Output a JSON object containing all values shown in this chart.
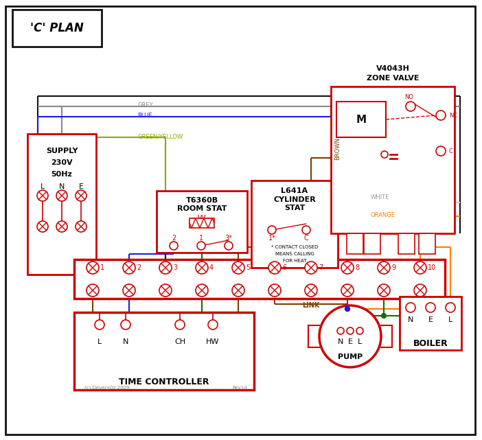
{
  "title": "'C' PLAN",
  "red": "#cc0000",
  "blue": "#1a1aee",
  "green": "#007700",
  "brown": "#7B3F00",
  "grey": "#888888",
  "orange": "#FF8000",
  "white_wire": "#aaaaaa",
  "black": "#111111",
  "green_yellow": "#88aa00",
  "supply_label": [
    "SUPPLY",
    "230V",
    "50Hz"
  ],
  "lne_labels": [
    "L",
    "N",
    "E"
  ],
  "terminal_labels": [
    "1",
    "2",
    "3",
    "4",
    "5",
    "6",
    "7",
    "8",
    "9",
    "10"
  ],
  "zone_valve_line1": "V4043H",
  "zone_valve_line2": "ZONE VALVE",
  "room_stat_line1": "T6360B",
  "room_stat_line2": "ROOM STAT",
  "cyl_stat_line1": "L641A",
  "cyl_stat_line2": "CYLINDER",
  "cyl_stat_line3": "STAT",
  "cyl_stat_note1": "* CONTACT CLOSED",
  "cyl_stat_note2": "MEANS CALLING",
  "cyl_stat_note3": "FOR HEAT",
  "time_ctrl": "TIME CONTROLLER",
  "pump_label": "PUMP",
  "boiler_label": "BOILER",
  "link_label": "LINK",
  "copyright": "(c) DeveryOz 2009",
  "rev": "Rev1d",
  "wire_grey_label": "GREY",
  "wire_blue_label": "BLUE",
  "wire_gy_label": "GREEN/YELLOW",
  "wire_brown_label": "BROWN",
  "wire_white_label": "WHITE",
  "wire_orange_label": "ORANGE"
}
